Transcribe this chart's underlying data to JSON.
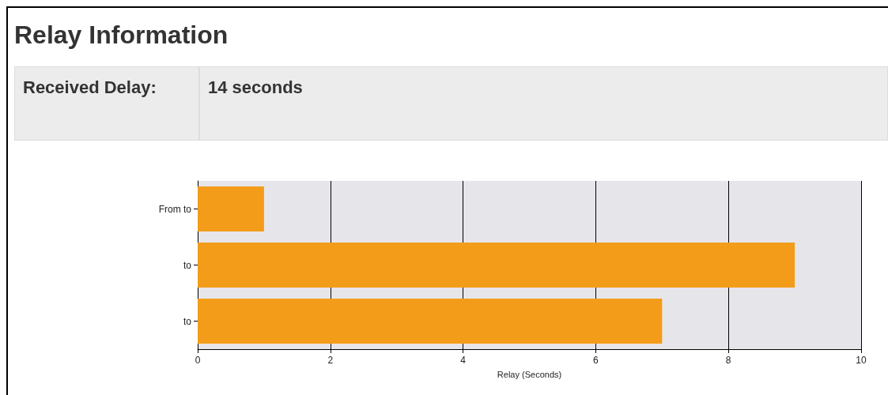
{
  "chart_data": {
    "type": "bar",
    "orientation": "horizontal",
    "title": "Relay Information",
    "annotations": [
      "Received Delay:",
      "14 seconds"
    ],
    "categories": [
      "From to",
      "to",
      "to"
    ],
    "values": [
      1,
      9,
      7
    ],
    "color": "#f39c1a",
    "xlabel": "Relay (Seconds)",
    "xlim": [
      0,
      10
    ],
    "xticks": [
      0,
      2,
      4,
      6,
      8,
      10
    ],
    "grid": "x"
  }
}
